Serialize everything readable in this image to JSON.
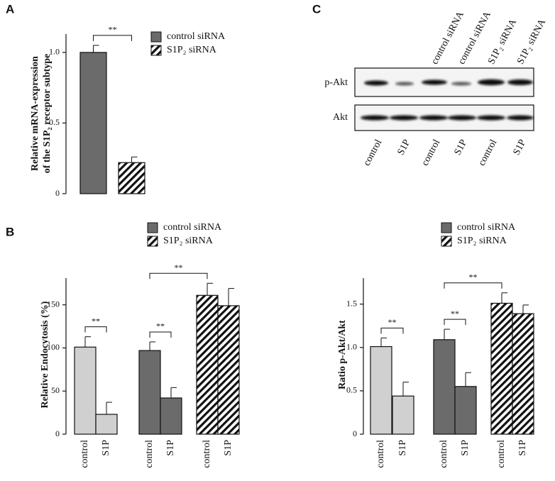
{
  "chart_data": [
    {
      "type": "bar",
      "panel": "A",
      "ylabel": [
        "Relative mRNA-expression",
        "of  the S1P₂  receptor subtype"
      ],
      "values": [
        1.0,
        0.22
      ],
      "errors": [
        0.05,
        0.04
      ],
      "fills": [
        "#6b6b6b",
        "#ffffff"
      ],
      "hatched": [
        false,
        true
      ],
      "ylim": [
        0,
        1.13
      ],
      "yticks": [
        0,
        0.5,
        {
          "value": 1,
          "label": "1.0"
        }
      ],
      "legend": [
        {
          "name": "control siRNA",
          "color": "#6b6b6b",
          "hatched": false
        },
        {
          "name": "S1P₂ siRNA",
          "color": "#ffffff",
          "hatched": true
        }
      ],
      "annotations": [
        {
          "text": "**",
          "between": [
            0,
            1
          ]
        }
      ]
    },
    {
      "type": "bar",
      "panel": "B",
      "ylabel": [
        "Relative Endocytosis (%)"
      ],
      "categories": [
        "control",
        "S1P",
        "control",
        "S1P",
        "control",
        "S1P"
      ],
      "values": [
        101,
        23,
        97,
        42,
        161,
        149
      ],
      "errors": [
        12,
        14,
        10,
        12,
        14,
        20
      ],
      "fills": [
        "#d0d0d0",
        "#d0d0d0",
        "#6b6b6b",
        "#6b6b6b",
        "#ffffff",
        "#ffffff"
      ],
      "hatched": [
        false,
        false,
        false,
        false,
        true,
        true
      ],
      "ylim": [
        0,
        181
      ],
      "yticks": [
        0,
        50,
        100,
        150
      ],
      "legend": [
        {
          "name": "control siRNA",
          "color": "#6b6b6b",
          "hatched": false
        },
        {
          "name": "S1P₂ siRNA",
          "color": "#ffffff",
          "hatched": true
        }
      ],
      "annotations": [
        {
          "text": "**",
          "between": [
            0,
            1
          ]
        },
        {
          "text": "**",
          "between": [
            2,
            3
          ]
        },
        {
          "text": "**",
          "between": [
            2,
            4
          ]
        }
      ]
    },
    {
      "type": "bar",
      "ylabel": [
        "Ratio p-Akt/Akt"
      ],
      "categories": [
        "control",
        "S1P",
        "control",
        "S1P",
        "control",
        "S1P"
      ],
      "values": [
        1.01,
        0.44,
        1.09,
        0.55,
        1.51,
        1.39
      ],
      "errors": [
        0.1,
        0.16,
        0.12,
        0.16,
        0.12,
        0.1
      ],
      "fills": [
        "#d0d0d0",
        "#d0d0d0",
        "#6b6b6b",
        "#6b6b6b",
        "#ffffff",
        "#ffffff"
      ],
      "hatched": [
        false,
        false,
        false,
        false,
        true,
        true
      ],
      "ylim": [
        0,
        1.8
      ],
      "yticks": [
        0,
        0.5,
        {
          "value": 1,
          "label": "1.0"
        },
        1.5
      ],
      "legend": [
        {
          "name": "control siRNA",
          "color": "#6b6b6b",
          "hatched": false
        },
        {
          "name": "S1P₂ siRNA",
          "color": "#ffffff",
          "hatched": true
        }
      ],
      "annotations": [
        {
          "text": "**",
          "between": [
            0,
            1
          ]
        },
        {
          "text": "**",
          "between": [
            2,
            3
          ]
        },
        {
          "text": "**",
          "between": [
            2,
            4
          ]
        }
      ]
    }
  ],
  "blot": {
    "panel": "C",
    "lane_headers": [
      "control siRNA",
      "control siRNA",
      "S1P₂ siRNA",
      "S1P₂ siRNA"
    ],
    "rows": [
      "p-Akt",
      "Akt"
    ],
    "lanes": [
      "control",
      "S1P",
      "control",
      "S1P",
      "control",
      "S1P"
    ]
  }
}
